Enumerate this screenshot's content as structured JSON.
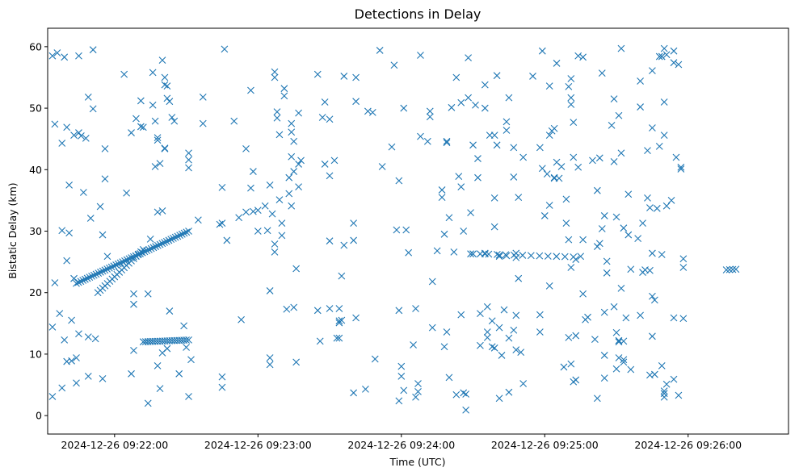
{
  "chart_data": {
    "type": "scatter",
    "title": "Detections in Delay",
    "xlabel": "Time (UTC)",
    "ylabel": "Bistatic Delay (km)",
    "marker": "x",
    "marker_color": "#1f77b4",
    "x_unit": "seconds after 2024-12-26 09:21:00 UTC",
    "xlim": [
      -28,
      282
    ],
    "ylim": [
      -3,
      63
    ],
    "x_ticks": [
      {
        "value": 0,
        "label": "2024-12-26 09:22:00"
      },
      {
        "value": 60,
        "label": "2024-12-26 09:23:00"
      },
      {
        "value": 120,
        "label": "2024-12-26 09:24:00"
      },
      {
        "value": 180,
        "label": "2024-12-26 09:25:00"
      },
      {
        "value": 240,
        "label": "2024-12-26 09:26:00"
      }
    ],
    "y_ticks": [
      {
        "value": 0,
        "label": "0"
      },
      {
        "value": 10,
        "label": "10"
      },
      {
        "value": 20,
        "label": "20"
      },
      {
        "value": 30,
        "label": "30"
      },
      {
        "value": 40,
        "label": "40"
      },
      {
        "value": 50,
        "label": "50"
      },
      {
        "value": 60,
        "label": "60"
      }
    ],
    "tracks": [
      {
        "name": "track-rising-21-32",
        "x_start": -16,
        "x_end": 31,
        "y_start": 21.5,
        "y_end": 30.0,
        "count": 52
      },
      {
        "name": "track-rising-20-27",
        "x_start": -7,
        "x_end": 12,
        "y_start": 20.0,
        "y_end": 27.0,
        "count": 20
      },
      {
        "name": "track-flat-12",
        "x_start": 12,
        "x_end": 31,
        "y_start": 12.0,
        "y_end": 12.3,
        "count": 20
      },
      {
        "name": "track-flat-26",
        "x_start": 153,
        "x_end": 192,
        "y_start": 26.3,
        "y_end": 25.8,
        "count": 12
      },
      {
        "name": "track-flat-23.8",
        "x_start": 256,
        "x_end": 260,
        "y_start": 23.7,
        "y_end": 23.8,
        "count": 4
      }
    ],
    "points": [
      [
        -26,
        3.1
      ],
      [
        -26,
        14.4
      ],
      [
        -26,
        58.5
      ],
      [
        -25,
        47.4
      ],
      [
        -25,
        21.6
      ],
      [
        -24,
        59.0
      ],
      [
        -23,
        16.6
      ],
      [
        -22,
        4.5
      ],
      [
        -22,
        44.3
      ],
      [
        -22,
        30.1
      ],
      [
        -21,
        12.3
      ],
      [
        -21,
        58.3
      ],
      [
        -20,
        46.9
      ],
      [
        -20,
        25.2
      ],
      [
        -20,
        8.8
      ],
      [
        -19,
        37.5
      ],
      [
        -19,
        29.7
      ],
      [
        -18,
        15.5
      ],
      [
        -18,
        8.9
      ],
      [
        -17,
        45.6
      ],
      [
        -17,
        22.3
      ],
      [
        -16,
        5.3
      ],
      [
        -16,
        9.4
      ],
      [
        -15,
        58.5
      ],
      [
        -15,
        13.3
      ],
      [
        -15,
        46.0
      ],
      [
        -14,
        45.5
      ],
      [
        -13,
        36.3
      ],
      [
        -12,
        45.1
      ],
      [
        -11,
        51.8
      ],
      [
        -11,
        12.8
      ],
      [
        -11,
        6.4
      ],
      [
        -10,
        32.1
      ],
      [
        -9,
        59.5
      ],
      [
        -9,
        49.9
      ],
      [
        -8,
        12.5
      ],
      [
        -6,
        34.0
      ],
      [
        -5,
        29.4
      ],
      [
        -4,
        43.4
      ],
      [
        -4,
        38.5
      ],
      [
        -5,
        6.0
      ],
      [
        -3,
        25.9
      ],
      [
        4,
        55.5
      ],
      [
        5,
        36.2
      ],
      [
        7,
        46.0
      ],
      [
        7,
        6.8
      ],
      [
        8,
        10.6
      ],
      [
        8,
        18.1
      ],
      [
        8,
        19.8
      ],
      [
        9,
        48.3
      ],
      [
        11,
        51.2
      ],
      [
        11,
        47.0
      ],
      [
        12,
        46.9
      ],
      [
        14,
        2.0
      ],
      [
        14,
        19.8
      ],
      [
        15,
        28.7
      ],
      [
        16,
        55.8
      ],
      [
        16,
        50.5
      ],
      [
        17,
        47.9
      ],
      [
        17,
        40.5
      ],
      [
        18,
        45.2
      ],
      [
        18,
        44.8
      ],
      [
        18,
        33.1
      ],
      [
        18,
        8.1
      ],
      [
        19,
        4.4
      ],
      [
        19,
        41.0
      ],
      [
        20,
        33.3
      ],
      [
        20,
        10.2
      ],
      [
        20,
        57.8
      ],
      [
        21,
        55.0
      ],
      [
        21,
        53.8
      ],
      [
        21,
        43.5
      ],
      [
        21,
        43.4
      ],
      [
        22,
        53.6
      ],
      [
        22,
        51.6
      ],
      [
        22,
        10.9
      ],
      [
        23,
        51.1
      ],
      [
        23,
        17.0
      ],
      [
        24,
        48.5
      ],
      [
        25,
        47.9
      ],
      [
        27,
        6.8
      ],
      [
        29,
        14.6
      ],
      [
        30,
        11.1
      ],
      [
        31,
        42.7
      ],
      [
        31,
        41.6
      ],
      [
        31,
        40.3
      ],
      [
        31,
        3.1
      ],
      [
        32,
        9.1
      ],
      [
        35,
        31.8
      ],
      [
        37,
        51.8
      ],
      [
        37,
        47.5
      ],
      [
        44,
        31.1
      ],
      [
        45,
        31.3
      ],
      [
        45,
        37.1
      ],
      [
        45,
        6.3
      ],
      [
        45,
        4.6
      ],
      [
        46,
        59.6
      ],
      [
        47,
        28.5
      ],
      [
        50,
        47.9
      ],
      [
        52,
        32.2
      ],
      [
        53,
        15.6
      ],
      [
        55,
        33.1
      ],
      [
        55,
        43.4
      ],
      [
        57,
        52.9
      ],
      [
        57,
        37.0
      ],
      [
        58,
        33.2
      ],
      [
        58,
        39.7
      ],
      [
        60,
        30.0
      ],
      [
        60,
        33.4
      ],
      [
        63,
        34.1
      ],
      [
        64,
        30.1
      ],
      [
        65,
        37.5
      ],
      [
        65,
        20.3
      ],
      [
        65,
        9.4
      ],
      [
        65,
        8.3
      ],
      [
        66,
        32.8
      ],
      [
        67,
        55.9
      ],
      [
        67,
        55.0
      ],
      [
        67,
        26.6
      ],
      [
        67,
        27.9
      ],
      [
        68,
        49.4
      ],
      [
        68,
        48.4
      ],
      [
        69,
        45.7
      ],
      [
        69,
        35.1
      ],
      [
        70,
        31.3
      ],
      [
        70,
        29.3
      ],
      [
        71,
        53.2
      ],
      [
        71,
        52.0
      ],
      [
        72,
        17.3
      ],
      [
        73,
        36.1
      ],
      [
        73,
        38.7
      ],
      [
        74,
        47.5
      ],
      [
        74,
        46.1
      ],
      [
        74,
        42.1
      ],
      [
        74,
        34.1
      ],
      [
        75,
        44.6
      ],
      [
        75,
        39.7
      ],
      [
        75,
        17.6
      ],
      [
        76,
        23.9
      ],
      [
        76,
        8.7
      ],
      [
        77,
        49.2
      ],
      [
        77,
        40.9
      ],
      [
        77,
        37.2
      ],
      [
        78,
        41.5
      ],
      [
        85,
        55.5
      ],
      [
        85,
        17.1
      ],
      [
        86,
        12.1
      ],
      [
        87,
        48.5
      ],
      [
        88,
        51.0
      ],
      [
        88,
        40.9
      ],
      [
        90,
        39.0
      ],
      [
        90,
        28.4
      ],
      [
        90,
        17.4
      ],
      [
        90,
        48.2
      ],
      [
        92,
        41.5
      ],
      [
        93,
        12.6
      ],
      [
        94,
        12.6
      ],
      [
        94,
        17.4
      ],
      [
        94,
        15.4
      ],
      [
        94,
        15.1
      ],
      [
        95,
        15.5
      ],
      [
        95,
        22.7
      ],
      [
        96,
        55.2
      ],
      [
        96,
        27.7
      ],
      [
        100,
        3.7
      ],
      [
        100,
        28.5
      ],
      [
        100,
        31.3
      ],
      [
        101,
        51.1
      ],
      [
        101,
        55.0
      ],
      [
        101,
        15.9
      ],
      [
        105,
        4.3
      ],
      [
        106,
        49.5
      ],
      [
        108,
        49.3
      ],
      [
        109,
        9.2
      ],
      [
        111,
        59.4
      ],
      [
        112,
        40.5
      ],
      [
        116,
        43.7
      ],
      [
        117,
        57.0
      ],
      [
        118,
        30.2
      ],
      [
        119,
        38.2
      ],
      [
        119,
        2.4
      ],
      [
        119,
        17.1
      ],
      [
        120,
        8.0
      ],
      [
        120,
        6.4
      ],
      [
        121,
        50.0
      ],
      [
        121,
        4.1
      ],
      [
        122,
        30.2
      ],
      [
        123,
        26.5
      ],
      [
        125,
        11.5
      ],
      [
        126,
        17.4
      ],
      [
        126,
        3.0
      ],
      [
        127,
        5.2
      ],
      [
        127,
        3.9
      ],
      [
        128,
        58.6
      ],
      [
        128,
        45.4
      ],
      [
        131,
        44.6
      ],
      [
        132,
        49.5
      ],
      [
        132,
        48.6
      ],
      [
        133,
        21.8
      ],
      [
        133,
        14.3
      ],
      [
        135,
        26.8
      ],
      [
        137,
        36.7
      ],
      [
        137,
        35.5
      ],
      [
        138,
        29.5
      ],
      [
        138,
        11.2
      ],
      [
        139,
        13.6
      ],
      [
        139,
        44.6
      ],
      [
        139,
        44.4
      ],
      [
        140,
        6.2
      ],
      [
        140,
        32.2
      ],
      [
        141,
        50.1
      ],
      [
        142,
        26.6
      ],
      [
        143,
        55.0
      ],
      [
        143,
        3.4
      ],
      [
        144,
        38.9
      ],
      [
        145,
        50.9
      ],
      [
        145,
        37.2
      ],
      [
        145,
        16.4
      ],
      [
        146,
        30.0
      ],
      [
        146,
        3.7
      ],
      [
        147,
        0.9
      ],
      [
        147,
        3.5
      ],
      [
        148,
        58.2
      ],
      [
        148,
        51.7
      ],
      [
        149,
        33.0
      ],
      [
        149,
        26.3
      ],
      [
        150,
        26.3
      ],
      [
        150,
        44.0
      ],
      [
        151,
        50.5
      ],
      [
        152,
        41.8
      ],
      [
        152,
        38.7
      ],
      [
        153,
        11.4
      ],
      [
        153,
        16.6
      ],
      [
        155,
        53.8
      ],
      [
        155,
        26.3
      ],
      [
        155,
        26.4
      ],
      [
        155,
        50.0
      ],
      [
        156,
        17.7
      ],
      [
        156,
        13.6
      ],
      [
        156,
        12.7
      ],
      [
        157,
        45.6
      ],
      [
        158,
        15.4
      ],
      [
        158,
        11.2
      ],
      [
        159,
        45.6
      ],
      [
        159,
        35.4
      ],
      [
        159,
        30.7
      ],
      [
        159,
        11.0
      ],
      [
        160,
        55.3
      ],
      [
        160,
        44.0
      ],
      [
        161,
        26.1
      ],
      [
        161,
        14.3
      ],
      [
        161,
        25.9
      ],
      [
        161,
        2.8
      ],
      [
        162,
        9.8
      ],
      [
        163,
        17.2
      ],
      [
        164,
        46.4
      ],
      [
        164,
        47.8
      ],
      [
        164,
        26.0
      ],
      [
        165,
        51.7
      ],
      [
        165,
        12.6
      ],
      [
        165,
        3.8
      ],
      [
        167,
        43.6
      ],
      [
        167,
        38.8
      ],
      [
        167,
        13.9
      ],
      [
        168,
        26.4
      ],
      [
        168,
        25.7
      ],
      [
        168,
        16.3
      ],
      [
        168,
        10.7
      ],
      [
        169,
        35.5
      ],
      [
        169,
        22.3
      ],
      [
        170,
        10.3
      ],
      [
        171,
        42.0
      ],
      [
        171,
        5.2
      ],
      [
        175,
        55.2
      ],
      [
        178,
        43.6
      ],
      [
        178,
        16.4
      ],
      [
        178,
        13.6
      ],
      [
        179,
        59.3
      ],
      [
        179,
        40.2
      ],
      [
        180,
        32.5
      ],
      [
        181,
        39.3
      ],
      [
        182,
        53.6
      ],
      [
        182,
        45.6
      ],
      [
        182,
        34.2
      ],
      [
        182,
        21.1
      ],
      [
        183,
        46.3
      ],
      [
        184,
        38.7
      ],
      [
        184,
        38.6
      ],
      [
        184,
        46.7
      ],
      [
        185,
        57.3
      ],
      [
        185,
        41.2
      ],
      [
        186,
        38.6
      ],
      [
        187,
        40.5
      ],
      [
        188,
        7.9
      ],
      [
        189,
        35.2
      ],
      [
        189,
        31.3
      ],
      [
        190,
        28.6
      ],
      [
        190,
        12.7
      ],
      [
        190,
        53.5
      ],
      [
        191,
        54.8
      ],
      [
        191,
        51.7
      ],
      [
        191,
        50.6
      ],
      [
        191,
        24.1
      ],
      [
        191,
        8.4
      ],
      [
        192,
        5.5
      ],
      [
        192,
        47.7
      ],
      [
        192,
        42.0
      ],
      [
        193,
        13.0
      ],
      [
        193,
        5.8
      ],
      [
        193,
        25.4
      ],
      [
        194,
        58.5
      ],
      [
        194,
        40.4
      ],
      [
        195,
        25.9
      ],
      [
        196,
        58.3
      ],
      [
        196,
        28.6
      ],
      [
        196,
        19.8
      ],
      [
        197,
        15.6
      ],
      [
        198,
        16.0
      ],
      [
        200,
        41.5
      ],
      [
        201,
        12.4
      ],
      [
        202,
        36.6
      ],
      [
        202,
        27.5
      ],
      [
        202,
        2.8
      ],
      [
        203,
        41.9
      ],
      [
        203,
        28.0
      ],
      [
        204,
        55.7
      ],
      [
        204,
        30.4
      ],
      [
        205,
        32.5
      ],
      [
        205,
        16.8
      ],
      [
        205,
        9.8
      ],
      [
        205,
        6.1
      ],
      [
        206,
        25.1
      ],
      [
        206,
        23.2
      ],
      [
        208,
        47.2
      ],
      [
        209,
        51.5
      ],
      [
        209,
        41.3
      ],
      [
        209,
        17.7
      ],
      [
        210,
        13.5
      ],
      [
        210,
        32.3
      ],
      [
        210,
        7.6
      ],
      [
        211,
        12.2
      ],
      [
        211,
        12.0
      ],
      [
        211,
        9.4
      ],
      [
        211,
        48.8
      ],
      [
        212,
        59.7
      ],
      [
        212,
        42.7
      ],
      [
        212,
        20.7
      ],
      [
        213,
        30.5
      ],
      [
        213,
        12.1
      ],
      [
        213,
        8.7
      ],
      [
        213,
        9.1
      ],
      [
        214,
        15.9
      ],
      [
        215,
        36.0
      ],
      [
        215,
        29.4
      ],
      [
        216,
        23.8
      ],
      [
        216,
        7.5
      ],
      [
        219,
        28.8
      ],
      [
        220,
        54.4
      ],
      [
        220,
        50.2
      ],
      [
        220,
        16.3
      ],
      [
        221,
        31.3
      ],
      [
        221,
        23.3
      ],
      [
        222,
        23.7
      ],
      [
        223,
        43.1
      ],
      [
        223,
        35.4
      ],
      [
        224,
        33.8
      ],
      [
        224,
        23.6
      ],
      [
        224,
        6.6
      ],
      [
        225,
        56.1
      ],
      [
        225,
        46.8
      ],
      [
        225,
        26.4
      ],
      [
        225,
        19.4
      ],
      [
        225,
        12.9
      ],
      [
        226,
        18.8
      ],
      [
        226,
        6.7
      ],
      [
        227,
        33.7
      ],
      [
        228,
        58.4
      ],
      [
        228,
        43.8
      ],
      [
        229,
        58.4
      ],
      [
        229,
        26.2
      ],
      [
        229,
        8.1
      ],
      [
        230,
        59.7
      ],
      [
        230,
        51.0
      ],
      [
        230,
        45.6
      ],
      [
        230,
        4.0
      ],
      [
        230,
        3.6
      ],
      [
        230,
        3.0
      ],
      [
        231,
        58.7
      ],
      [
        231,
        5.1
      ],
      [
        231,
        34.1
      ],
      [
        233,
        35.0
      ],
      [
        234,
        59.3
      ],
      [
        234,
        57.4
      ],
      [
        234,
        15.9
      ],
      [
        234,
        5.9
      ],
      [
        235,
        42.0
      ],
      [
        236,
        3.3
      ],
      [
        236,
        57.1
      ],
      [
        237,
        40.4
      ],
      [
        237,
        40.1
      ],
      [
        238,
        25.5
      ],
      [
        238,
        24.1
      ],
      [
        238,
        15.8
      ]
    ]
  }
}
